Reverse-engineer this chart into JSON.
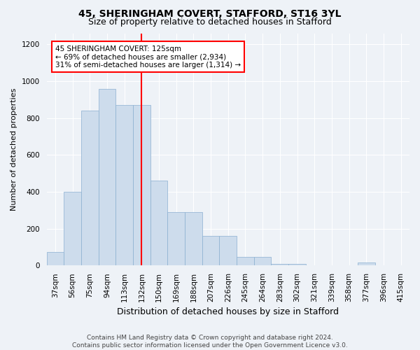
{
  "title1": "45, SHERINGHAM COVERT, STAFFORD, ST16 3YL",
  "title2": "Size of property relative to detached houses in Stafford",
  "xlabel": "Distribution of detached houses by size in Stafford",
  "ylabel": "Number of detached properties",
  "categories": [
    "37sqm",
    "56sqm",
    "75sqm",
    "94sqm",
    "113sqm",
    "132sqm",
    "150sqm",
    "169sqm",
    "188sqm",
    "207sqm",
    "226sqm",
    "245sqm",
    "264sqm",
    "283sqm",
    "302sqm",
    "321sqm",
    "339sqm",
    "358sqm",
    "377sqm",
    "396sqm",
    "415sqm"
  ],
  "bar_values": [
    75,
    400,
    840,
    960,
    870,
    870,
    460,
    290,
    290,
    160,
    160,
    45,
    45,
    10,
    10,
    0,
    0,
    0,
    15,
    0,
    0
  ],
  "bar_color": "#cddcec",
  "bar_edge_color": "#8aafd0",
  "vline_x": 5,
  "vline_color": "red",
  "annotation_text": "45 SHERINGHAM COVERT: 125sqm\n← 69% of detached houses are smaller (2,934)\n31% of semi-detached houses are larger (1,314) →",
  "annotation_box_color": "white",
  "annotation_box_edge": "red",
  "ylim": [
    0,
    1260
  ],
  "yticks": [
    0,
    200,
    400,
    600,
    800,
    1000,
    1200
  ],
  "bg_color": "#eef2f7",
  "footer": "Contains HM Land Registry data © Crown copyright and database right 2024.\nContains public sector information licensed under the Open Government Licence v3.0.",
  "title1_fontsize": 10,
  "title2_fontsize": 9,
  "xlabel_fontsize": 9,
  "ylabel_fontsize": 8,
  "tick_fontsize": 7.5,
  "footer_fontsize": 6.5,
  "annot_fontsize": 7.5
}
